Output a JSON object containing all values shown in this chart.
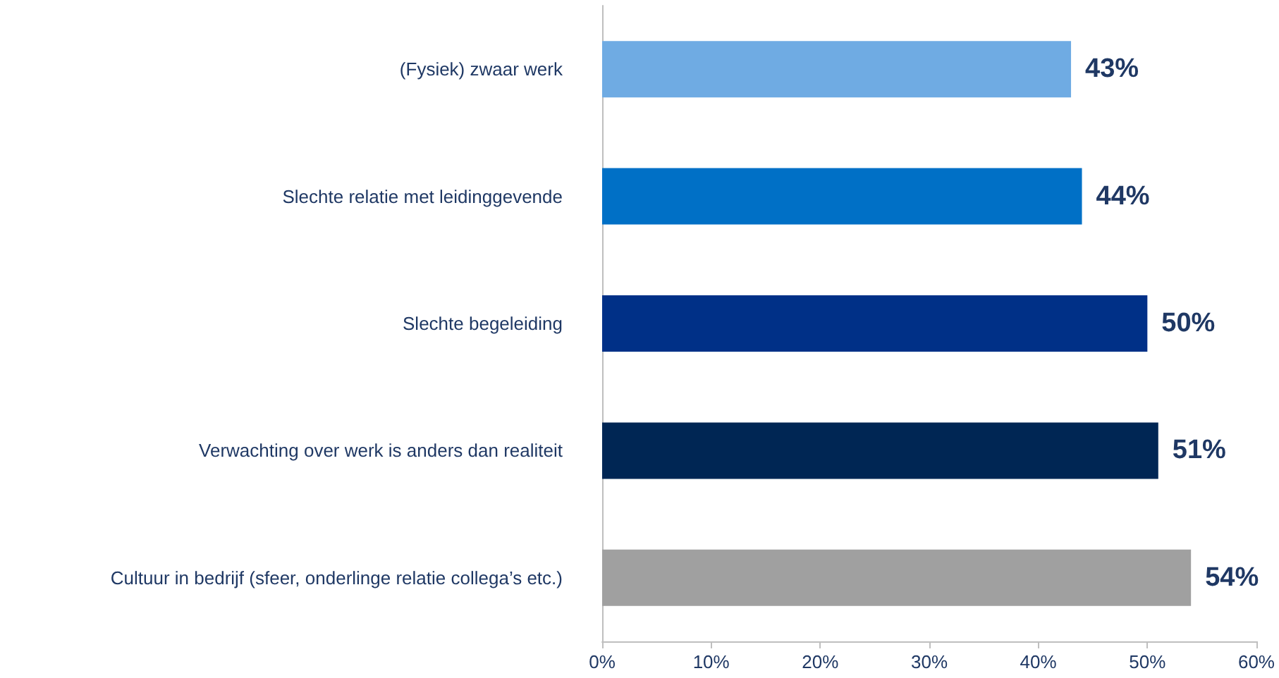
{
  "chart_data": {
    "type": "bar",
    "orientation": "horizontal",
    "categories": [
      "(Fysiek) zwaar werk",
      "Slechte relatie met leidinggevende",
      "Slechte begeleiding",
      "Verwachting over werk is anders dan realiteit",
      "Cultuur in bedrijf (sfeer, onderlinge relatie collega’s etc.)"
    ],
    "values": [
      43,
      44,
      50,
      51,
      54
    ],
    "colors": [
      "#6fabe3",
      "#0070c6",
      "#003087",
      "#002654",
      "#a0a0a0"
    ],
    "value_labels": [
      "43%",
      "44%",
      "50%",
      "51%",
      "54%"
    ],
    "xlim": [
      0,
      60
    ],
    "xticks": [
      {
        "value": 0,
        "label": "0%"
      },
      {
        "value": 10,
        "label": "10%"
      },
      {
        "value": 20,
        "label": "20%"
      },
      {
        "value": 30,
        "label": "30%"
      },
      {
        "value": 40,
        "label": "40%"
      },
      {
        "value": 50,
        "label": "50%"
      },
      {
        "value": 60,
        "label": "60%"
      }
    ],
    "grid": false
  }
}
